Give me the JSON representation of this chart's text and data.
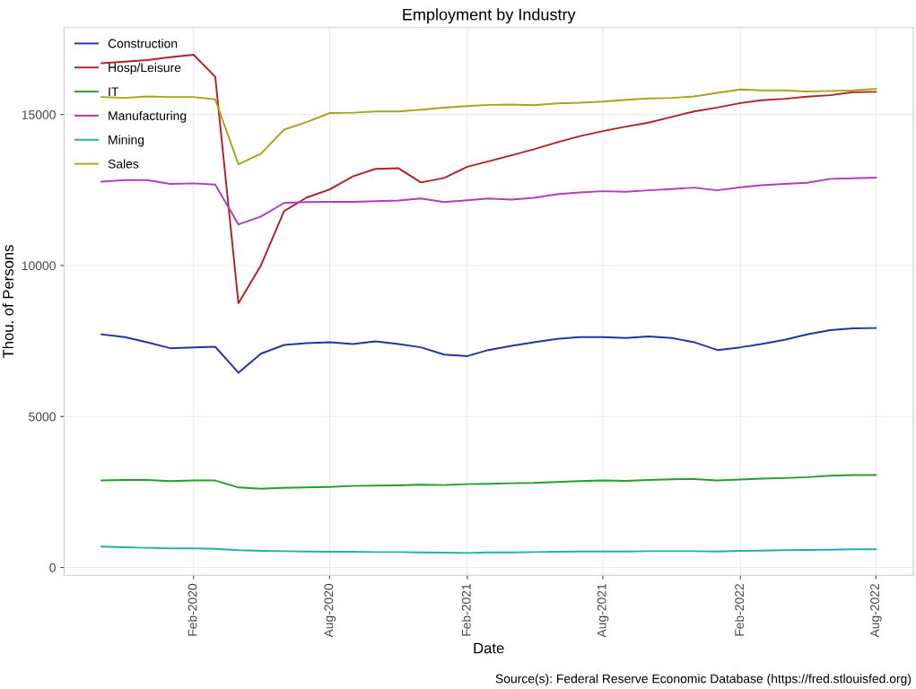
{
  "chart_data": {
    "type": "line",
    "title": "Employment by Industry",
    "xlabel": "Date",
    "ylabel": "Thou. of Persons",
    "annotations": [
      "Source(s): Federal Reserve Economic Database (https://fred.stlouisfed.org)"
    ],
    "x": [
      "2019-10",
      "2019-11",
      "2019-12",
      "2020-01",
      "2020-02",
      "2020-03",
      "2020-04",
      "2020-05",
      "2020-06",
      "2020-07",
      "2020-08",
      "2020-09",
      "2020-10",
      "2020-11",
      "2020-12",
      "2021-01",
      "2021-02",
      "2021-03",
      "2021-04",
      "2021-05",
      "2021-06",
      "2021-07",
      "2021-08",
      "2021-09",
      "2021-10",
      "2021-11",
      "2021-12",
      "2022-01",
      "2022-02",
      "2022-03",
      "2022-04",
      "2022-05",
      "2022-06",
      "2022-07",
      "2022-08"
    ],
    "series": [
      {
        "name": "Construction",
        "color": "#2433a8",
        "values": [
          7720,
          7630,
          7460,
          7260,
          7290,
          7310,
          6450,
          7080,
          7370,
          7430,
          7460,
          7400,
          7490,
          7400,
          7290,
          7050,
          7000,
          7200,
          7340,
          7460,
          7570,
          7630,
          7630,
          7600,
          7650,
          7600,
          7460,
          7200,
          7290,
          7400,
          7540,
          7720,
          7860,
          7920,
          7930
        ]
      },
      {
        "name": "Hosp/Leisure",
        "color": "#b22222",
        "values": [
          16700,
          16750,
          16800,
          16900,
          16980,
          16250,
          8750,
          10000,
          11800,
          12250,
          12520,
          12950,
          13200,
          13220,
          12750,
          12900,
          13270,
          13450,
          13650,
          13850,
          14080,
          14280,
          14450,
          14600,
          14730,
          14920,
          15100,
          15230,
          15380,
          15470,
          15520,
          15590,
          15640,
          15740,
          15750
        ]
      },
      {
        "name": "IT",
        "color": "#22a122",
        "values": [
          2880,
          2900,
          2900,
          2860,
          2880,
          2880,
          2650,
          2610,
          2640,
          2650,
          2670,
          2700,
          2710,
          2720,
          2740,
          2730,
          2760,
          2770,
          2790,
          2800,
          2830,
          2860,
          2880,
          2870,
          2900,
          2920,
          2930,
          2880,
          2910,
          2940,
          2960,
          2990,
          3040,
          3060,
          3060
        ]
      },
      {
        "name": "Manufacturing",
        "color": "#b23cc0",
        "values": [
          12780,
          12830,
          12830,
          12700,
          12720,
          12680,
          11360,
          11620,
          12070,
          12100,
          12110,
          12110,
          12130,
          12150,
          12220,
          12100,
          12160,
          12220,
          12180,
          12240,
          12360,
          12420,
          12460,
          12440,
          12490,
          12530,
          12580,
          12490,
          12590,
          12660,
          12700,
          12740,
          12870,
          12890,
          12910
        ]
      },
      {
        "name": "Mining",
        "color": "#20b2aa",
        "values": [
          690,
          670,
          650,
          630,
          630,
          620,
          570,
          550,
          540,
          530,
          520,
          520,
          510,
          510,
          500,
          490,
          480,
          500,
          500,
          510,
          520,
          530,
          530,
          530,
          540,
          540,
          540,
          530,
          550,
          560,
          570,
          580,
          590,
          600,
          600
        ]
      },
      {
        "name": "Sales",
        "color": "#a6a61a",
        "values": [
          15580,
          15550,
          15600,
          15580,
          15580,
          15500,
          13350,
          13700,
          14500,
          14750,
          15050,
          15060,
          15100,
          15100,
          15160,
          15230,
          15280,
          15320,
          15330,
          15310,
          15370,
          15390,
          15430,
          15490,
          15530,
          15550,
          15600,
          15720,
          15830,
          15800,
          15800,
          15760,
          15780,
          15800,
          15850
        ]
      }
    ],
    "xlim": [
      "2019-08-12",
      "2022-09-20"
    ],
    "xticks": [
      {
        "value": "2020-02",
        "label": "Feb-2020"
      },
      {
        "value": "2020-08",
        "label": "Aug-2020"
      },
      {
        "value": "2021-02",
        "label": "Feb-2021"
      },
      {
        "value": "2021-08",
        "label": "Aug-2021"
      },
      {
        "value": "2022-02",
        "label": "Feb-2022"
      },
      {
        "value": "2022-08",
        "label": "Aug-2022"
      }
    ],
    "ylim": [
      -260,
      17880
    ],
    "yticks": [
      0,
      5000,
      10000,
      15000
    ],
    "grid": true,
    "legend": "top left",
    "line_style": "solid",
    "marker": "none"
  }
}
